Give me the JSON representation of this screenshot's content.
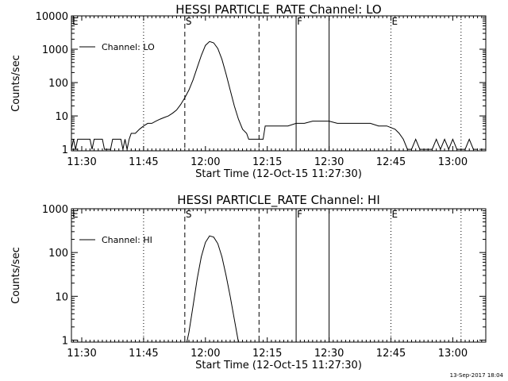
{
  "footer": {
    "timestamp": "13-Sep-2017 18:04"
  },
  "chart_data": [
    {
      "type": "line",
      "title": "HESSI PARTICLE_RATE Channel: LO",
      "xlabel": "Start Time (12-Oct-15 11:27:30)",
      "ylabel": "Counts/sec",
      "yscale": "log",
      "xlim": [
        "11:27:30",
        "13:08:00"
      ],
      "ylim": [
        0.9,
        10000
      ],
      "x_ticks": [
        "11:30",
        "11:45",
        "12:00",
        "12:15",
        "12:30",
        "12:45",
        "13:00"
      ],
      "y_ticks": [
        "1",
        "10",
        "100",
        "1000",
        "10000"
      ],
      "legend": {
        "placement": "top-left",
        "entries": [
          "Channel: LO"
        ]
      },
      "markers": [
        {
          "label": "E",
          "time": "11:27:30",
          "style": "dotted"
        },
        {
          "label": "S",
          "time": "11:55:00",
          "style": "dashed"
        },
        {
          "label": "",
          "time": "12:13:00",
          "style": "dashed"
        },
        {
          "label": "F",
          "time": "12:22:00",
          "style": "solid"
        },
        {
          "label": "",
          "time": "12:30:00",
          "style": "solid"
        },
        {
          "label": "E",
          "time": "12:45:00",
          "style": "dotted"
        }
      ],
      "extra_vlines": [
        {
          "time": "11:45:00",
          "style": "dotted"
        },
        {
          "time": "13:02:00",
          "style": "dotted"
        }
      ],
      "series": [
        {
          "name": "Channel: LO",
          "points": [
            [
              "11:27:30",
              1
            ],
            [
              "11:28:00",
              2
            ],
            [
              "11:28:30",
              1
            ],
            [
              "11:29:00",
              2
            ],
            [
              "11:30:00",
              2
            ],
            [
              "11:32:00",
              2
            ],
            [
              "11:32:30",
              1
            ],
            [
              "11:33:00",
              2
            ],
            [
              "11:35:00",
              2
            ],
            [
              "11:35:30",
              1
            ],
            [
              "11:37:00",
              1
            ],
            [
              "11:37:30",
              2
            ],
            [
              "11:39:30",
              2
            ],
            [
              "11:40:00",
              1
            ],
            [
              "11:40:30",
              2
            ],
            [
              "11:41:00",
              1
            ],
            [
              "11:41:30",
              2
            ],
            [
              "11:42:00",
              3
            ],
            [
              "11:43:00",
              3
            ],
            [
              "11:44:00",
              4
            ],
            [
              "11:45:00",
              5
            ],
            [
              "11:46:00",
              6
            ],
            [
              "11:47:00",
              6
            ],
            [
              "11:48:00",
              7
            ],
            [
              "11:49:00",
              8
            ],
            [
              "11:50:00",
              9
            ],
            [
              "11:51:00",
              10
            ],
            [
              "11:52:00",
              12
            ],
            [
              "11:53:00",
              15
            ],
            [
              "11:54:00",
              22
            ],
            [
              "11:55:00",
              35
            ],
            [
              "11:56:00",
              60
            ],
            [
              "11:57:00",
              120
            ],
            [
              "11:58:00",
              280
            ],
            [
              "11:59:00",
              650
            ],
            [
              "12:00:00",
              1300
            ],
            [
              "12:01:00",
              1700
            ],
            [
              "12:02:00",
              1550
            ],
            [
              "12:03:00",
              1050
            ],
            [
              "12:04:00",
              500
            ],
            [
              "12:05:00",
              180
            ],
            [
              "12:06:00",
              60
            ],
            [
              "12:07:00",
              20
            ],
            [
              "12:08:00",
              8
            ],
            [
              "12:09:00",
              4
            ],
            [
              "12:10:00",
              3
            ],
            [
              "12:10:30",
              2
            ],
            [
              "12:11:00",
              2
            ],
            [
              "12:12:00",
              2
            ],
            [
              "12:12:30",
              2
            ],
            [
              "12:13:00",
              2
            ],
            [
              "12:14:00",
              2
            ],
            [
              "12:14:30",
              5
            ],
            [
              "12:15:00",
              5
            ],
            [
              "12:17:00",
              5
            ],
            [
              "12:18:00",
              5
            ],
            [
              "12:20:00",
              5
            ],
            [
              "12:22:00",
              6
            ],
            [
              "12:24:00",
              6
            ],
            [
              "12:26:00",
              7
            ],
            [
              "12:28:00",
              7
            ],
            [
              "12:30:00",
              7
            ],
            [
              "12:32:00",
              6
            ],
            [
              "12:34:00",
              6
            ],
            [
              "12:36:00",
              6
            ],
            [
              "12:38:00",
              6
            ],
            [
              "12:40:00",
              6
            ],
            [
              "12:42:00",
              5
            ],
            [
              "12:44:00",
              5
            ],
            [
              "12:46:00",
              4
            ],
            [
              "12:47:00",
              3
            ],
            [
              "12:48:00",
              2
            ],
            [
              "12:49:00",
              1
            ],
            [
              "12:50:00",
              1
            ],
            [
              "12:51:00",
              2
            ],
            [
              "12:52:00",
              1
            ],
            [
              "12:53:00",
              1
            ],
            [
              "12:55:00",
              1
            ],
            [
              "12:56:00",
              2
            ],
            [
              "12:57:00",
              1
            ],
            [
              "12:58:00",
              2
            ],
            [
              "12:59:00",
              1
            ],
            [
              "13:00:00",
              2
            ],
            [
              "13:01:00",
              1
            ],
            [
              "13:03:00",
              1
            ],
            [
              "13:04:00",
              2
            ],
            [
              "13:05:00",
              1
            ],
            [
              "13:06:00",
              1
            ]
          ]
        }
      ]
    },
    {
      "type": "line",
      "title": "HESSI PARTICLE_RATE Channel: HI",
      "xlabel": "Start Time (12-Oct-15 11:27:30)",
      "ylabel": "Counts/sec",
      "yscale": "log",
      "xlim": [
        "11:27:30",
        "13:08:00"
      ],
      "ylim": [
        0.9,
        1000
      ],
      "x_ticks": [
        "11:30",
        "11:45",
        "12:00",
        "12:15",
        "12:30",
        "12:45",
        "13:00"
      ],
      "y_ticks": [
        "1",
        "10",
        "100",
        "1000"
      ],
      "legend": {
        "placement": "top-left",
        "entries": [
          "Channel: HI"
        ]
      },
      "markers": [
        {
          "label": "E",
          "time": "11:27:30",
          "style": "dotted"
        },
        {
          "label": "S",
          "time": "11:55:00",
          "style": "dashed"
        },
        {
          "label": "",
          "time": "12:13:00",
          "style": "dashed"
        },
        {
          "label": "F",
          "time": "12:22:00",
          "style": "solid"
        },
        {
          "label": "",
          "time": "12:30:00",
          "style": "solid"
        },
        {
          "label": "E",
          "time": "12:45:00",
          "style": "dotted"
        }
      ],
      "extra_vlines": [
        {
          "time": "11:45:00",
          "style": "dotted"
        },
        {
          "time": "13:02:00",
          "style": "dotted"
        }
      ],
      "series": [
        {
          "name": "Channel: HI",
          "points": [
            [
              "11:55:30",
              0.9
            ],
            [
              "11:56:00",
              1.5
            ],
            [
              "11:57:00",
              6
            ],
            [
              "11:58:00",
              25
            ],
            [
              "11:59:00",
              80
            ],
            [
              "12:00:00",
              170
            ],
            [
              "12:01:00",
              240
            ],
            [
              "12:02:00",
              225
            ],
            [
              "12:03:00",
              160
            ],
            [
              "12:04:00",
              80
            ],
            [
              "12:05:00",
              30
            ],
            [
              "12:06:00",
              10
            ],
            [
              "12:07:00",
              3
            ],
            [
              "12:08:00",
              0.9
            ]
          ]
        }
      ]
    }
  ]
}
